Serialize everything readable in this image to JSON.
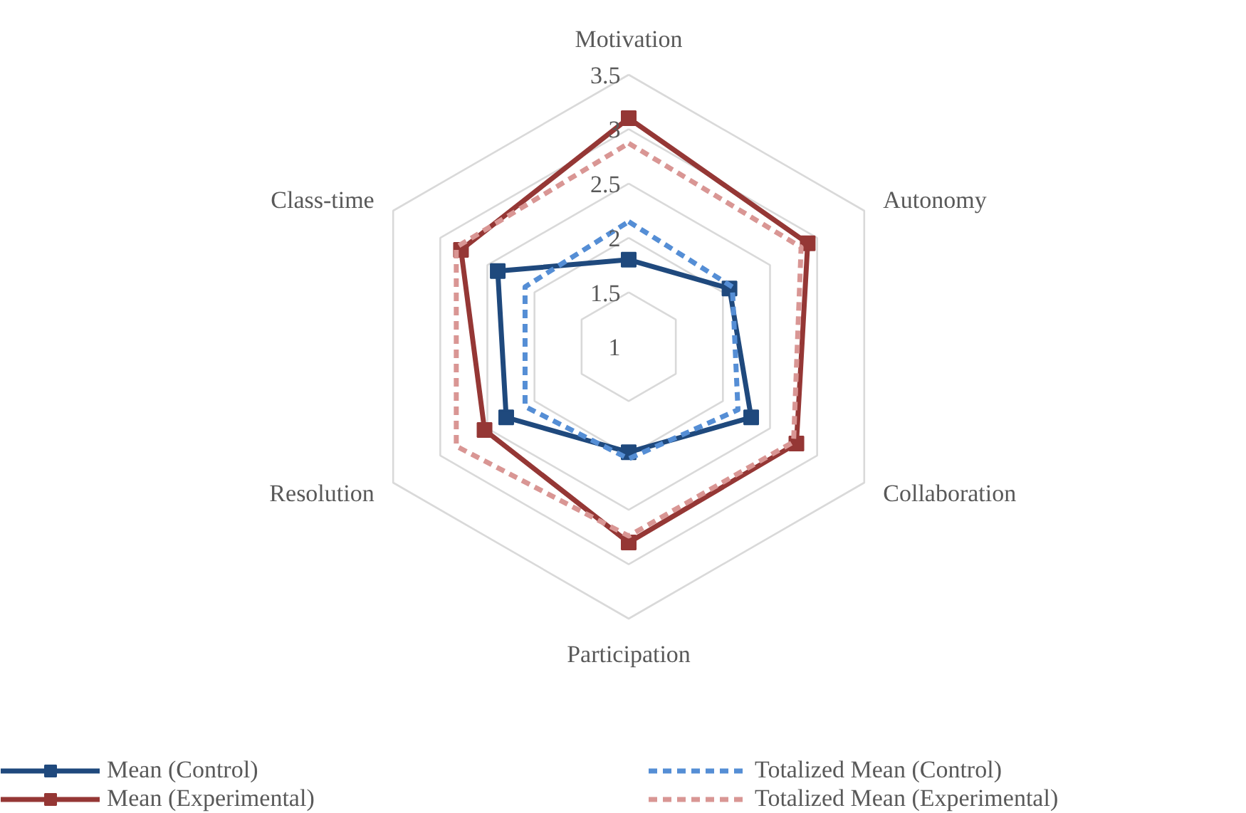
{
  "chart_data": {
    "type": "radar",
    "categories": [
      "Motivation",
      "Autonomy",
      "Collaboration",
      "Participation",
      "Resolution",
      "Class-time"
    ],
    "ylim": [
      1,
      3.5
    ],
    "yticks": [
      1,
      1.5,
      2,
      2.5,
      3,
      3.5
    ],
    "legend": "bottom",
    "series": [
      {
        "name": "Mean (Control)",
        "color": "#1f497d",
        "values": [
          1.8,
          2.07,
          2.3,
          1.97,
          2.3,
          2.39
        ],
        "line_style": "solid",
        "marker": "square"
      },
      {
        "name": "Mean (Experimental)",
        "color": "#953735",
        "values": [
          3.1,
          2.9,
          2.78,
          2.8,
          2.53,
          2.78
        ],
        "line_style": "solid",
        "marker": "square"
      },
      {
        "name": "Totalized Mean (Control)",
        "color": "#558ed5",
        "values": [
          2.15,
          2.1,
          2.16,
          2.03,
          2.1,
          2.1
        ],
        "line_style": "dashed",
        "marker": "none"
      },
      {
        "name": "Totalized Mean (Experimental)",
        "color": "#d99694",
        "values": [
          2.87,
          2.83,
          2.75,
          2.74,
          2.83,
          2.83
        ],
        "line_style": "dashed",
        "marker": "none"
      }
    ]
  }
}
